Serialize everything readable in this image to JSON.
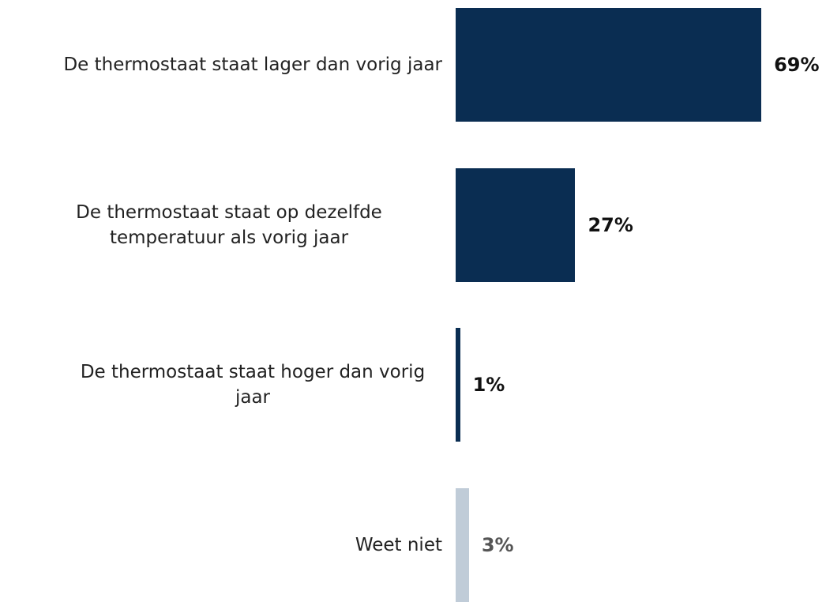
{
  "chart_data": {
    "type": "bar",
    "orientation": "horizontal",
    "categories": [
      "De thermostaat staat lager dan vorig jaar",
      "De thermostaat staat op dezelfde temperatuur als vorig jaar",
      "De thermostaat staat hoger dan vorig jaar",
      "Weet niet"
    ],
    "values": [
      69,
      27,
      1,
      3
    ],
    "value_labels": [
      "69%",
      "27%",
      "1%",
      "3%"
    ],
    "colors": [
      "#0a2d52",
      "#0a2d52",
      "#0a2d52",
      "#c0ccd8"
    ],
    "label_colors": [
      "#111111",
      "#111111",
      "#111111",
      "#555555"
    ]
  }
}
